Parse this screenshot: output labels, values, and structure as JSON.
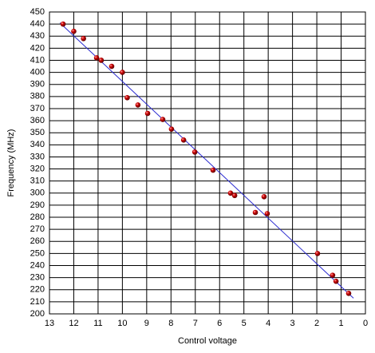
{
  "chart_data": {
    "type": "scatter",
    "xlabel": "Control voltage",
    "ylabel": "Frequency (MHz)",
    "x": [
      12.44,
      12.0,
      11.6,
      11.06,
      10.87,
      10.44,
      10.0,
      9.8,
      9.36,
      8.96,
      8.34,
      7.98,
      7.48,
      7.02,
      6.27,
      5.55,
      5.38,
      4.53,
      4.17,
      4.04,
      1.97,
      1.35,
      1.21,
      0.69
    ],
    "values": [
      440,
      434,
      428,
      412,
      410,
      405,
      400,
      379,
      373,
      366,
      361,
      353,
      344,
      334,
      319,
      300,
      298,
      284,
      297,
      283,
      250,
      232,
      227,
      217
    ],
    "color": "#cc0000",
    "trend": {
      "x": [
        12.57,
        0.49
      ],
      "values": [
        441,
        213
      ],
      "color": "#2a2ad0"
    },
    "xlim": [
      13,
      0
    ],
    "ylim": [
      200,
      450
    ],
    "xticks": [
      13,
      12,
      11,
      10,
      9,
      8,
      7,
      6,
      5,
      4,
      3,
      2,
      1,
      0
    ],
    "yticks": [
      200,
      210,
      220,
      230,
      240,
      250,
      260,
      270,
      280,
      290,
      300,
      310,
      320,
      330,
      340,
      350,
      360,
      370,
      380,
      390,
      400,
      410,
      420,
      430,
      440,
      450
    ],
    "grid": true
  }
}
